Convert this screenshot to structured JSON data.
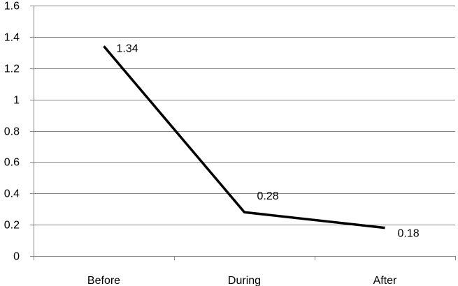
{
  "chart_data": {
    "type": "line",
    "title": "",
    "xlabel": "",
    "ylabel": "",
    "categories": [
      "Before",
      "During",
      "After"
    ],
    "series": [
      {
        "values": [
          1.34,
          0.28,
          0.18
        ]
      }
    ],
    "data_labels": [
      "1.34",
      "0.28",
      "0.18"
    ],
    "ylim": [
      0,
      1.6
    ],
    "yticks": [
      0,
      0.2,
      0.4,
      0.6,
      0.8,
      1,
      1.2,
      1.4,
      1.6
    ],
    "ytick_labels": [
      "0",
      "0.2",
      "0.4",
      "0.6",
      "0.8",
      "1",
      "1.2",
      "1.4",
      "1.6"
    ],
    "grid": "horizontal",
    "legend": "none",
    "colors": {
      "line": "#000000",
      "grid": "#868686",
      "axis": "#868686",
      "text": "#000000"
    }
  }
}
